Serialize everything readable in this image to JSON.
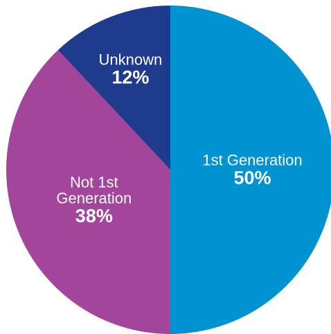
{
  "chart_data": {
    "type": "pie",
    "categories": [
      "1st Generation",
      "Not 1st Generation",
      "Unknown"
    ],
    "values": [
      50,
      38,
      12
    ],
    "value_labels": [
      "50%",
      "38%",
      "12%"
    ],
    "colors": [
      "#0092d1",
      "#a2459b",
      "#1e3b8e"
    ]
  }
}
